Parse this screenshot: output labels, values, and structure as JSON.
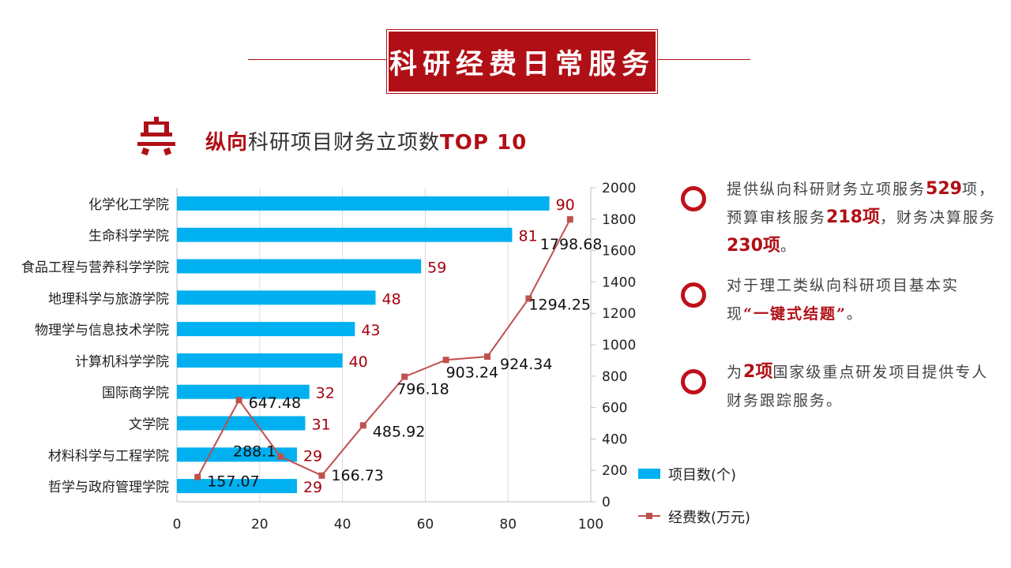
{
  "header": {
    "title": "科研经费日常服务"
  },
  "subtitle": {
    "part1": "纵向",
    "part2": "科研项目财务立项数",
    "part3": "TOP 10"
  },
  "bullets": [
    {
      "segments": [
        "提供纵向科研财务立项服务",
        "529",
        "项，预算审核服务",
        "218项",
        "，财务决算服务",
        "230项",
        "。"
      ]
    },
    {
      "segments": [
        "对于理工类纵向科研项目基本实现",
        "“一键式结题”",
        "。"
      ]
    },
    {
      "segments": [
        "为",
        "2项",
        "国家级重点研发项目提供专人财务跟踪服务。"
      ]
    }
  ],
  "colors": {
    "bar": "#00b0f0",
    "line": "#c0504d",
    "accent": "#b10f16",
    "bar_label": "#a5000d"
  },
  "chart_data": {
    "type": "bar",
    "orientation": "horizontal",
    "categories": [
      "化学化工学院",
      "生命科学学院",
      "食品工程与营养科学学院",
      "地理科学与旅游学院",
      "物理学与信息技术学院",
      "计算机科学学院",
      "国际商学院",
      "文学院",
      "材料科学与工程学院",
      "哲学与政府管理学院"
    ],
    "series": [
      {
        "name": "项目数(个)",
        "type": "bar",
        "axis": "bottom",
        "values": [
          90,
          81,
          59,
          48,
          43,
          40,
          32,
          31,
          29,
          29
        ]
      },
      {
        "name": "经费数(万元)",
        "type": "line",
        "axis": "right",
        "x": [
          5,
          15,
          25,
          35,
          45,
          55,
          65,
          75,
          85,
          95
        ],
        "values": [
          157.07,
          647.48,
          288.1,
          166.73,
          485.92,
          796.18,
          903.24,
          924.34,
          1294.25,
          1798.68
        ],
        "labels": [
          "157.07",
          "647.48",
          "288.1",
          "166.73",
          "485.92",
          "796.18",
          "903.24",
          "924.34",
          "1294.25",
          "1798.68"
        ]
      }
    ],
    "x_axis": {
      "min": 0,
      "max": 100,
      "ticks": [
        "0",
        "20",
        "40",
        "60",
        "80",
        "100"
      ]
    },
    "y2_axis": {
      "min": 0,
      "max": 2000,
      "ticks": [
        "0",
        "200",
        "400",
        "600",
        "800",
        "1000",
        "1200",
        "1400",
        "1600",
        "1800",
        "2000"
      ]
    },
    "grid": true,
    "legend": "bottom-right"
  }
}
